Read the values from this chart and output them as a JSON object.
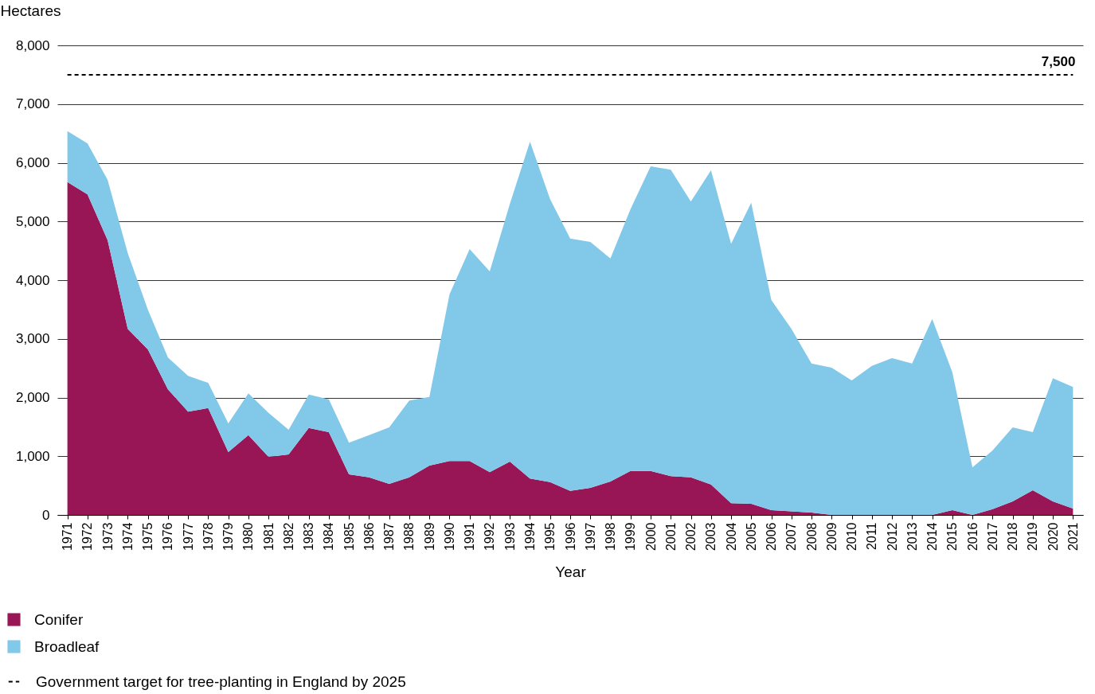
{
  "chart_data": {
    "type": "area",
    "stacked": true,
    "xlabel": "Year",
    "ylabel": "Hectares",
    "categories": [
      "1971",
      "1972",
      "1973",
      "1974",
      "1975",
      "1976",
      "1977",
      "1978",
      "1979",
      "1980",
      "1981",
      "1982",
      "1983",
      "1984",
      "1985",
      "1986",
      "1987",
      "1988",
      "1989",
      "1990",
      "1991",
      "1992",
      "1993",
      "1994",
      "1995",
      "1996",
      "1997",
      "1998",
      "1999",
      "2000",
      "2001",
      "2002",
      "2003",
      "2004",
      "2005",
      "2006",
      "2007",
      "2008",
      "2009",
      "2010",
      "2011",
      "2012",
      "2013",
      "2014",
      "2015",
      "2016",
      "2017",
      "2018",
      "2019",
      "2020",
      "2021"
    ],
    "series": [
      {
        "name": "Conifer",
        "color": "#981655",
        "values": [
          5670,
          5460,
          4680,
          3170,
          2820,
          2140,
          1760,
          1820,
          1070,
          1360,
          990,
          1030,
          1480,
          1410,
          690,
          640,
          530,
          640,
          840,
          920,
          920,
          730,
          910,
          620,
          560,
          410,
          460,
          570,
          750,
          750,
          660,
          640,
          520,
          200,
          190,
          80,
          60,
          40,
          0,
          0,
          0,
          0,
          0,
          0,
          80,
          0,
          100,
          230,
          420,
          230,
          110
        ]
      },
      {
        "name": "Broadleaf",
        "color": "#82c8e8",
        "values": [
          870,
          870,
          1030,
          1290,
          680,
          540,
          610,
          430,
          490,
          710,
          750,
          420,
          570,
          560,
          540,
          720,
          960,
          1310,
          1170,
          2840,
          3610,
          3420,
          4390,
          5740,
          4820,
          4300,
          4190,
          3800,
          4460,
          5190,
          5220,
          4700,
          5350,
          4420,
          5130,
          3580,
          3110,
          2540,
          2510,
          2290,
          2540,
          2670,
          2580,
          3340,
          2350,
          810,
          1000,
          1260,
          990,
          2100,
          2070
        ]
      }
    ],
    "ylim": [
      0,
      8000
    ],
    "yticks": [
      0,
      {
        "value": 1000,
        "label": "1,000"
      },
      {
        "value": 2000,
        "label": "2,000"
      },
      {
        "value": 3000,
        "label": "3,000"
      },
      {
        "value": 4000,
        "label": "4,000"
      },
      {
        "value": 5000,
        "label": "5,000"
      },
      {
        "value": 6000,
        "label": "6,000"
      },
      {
        "value": 7000,
        "label": "7,000"
      },
      {
        "value": 8000,
        "label": "8,000"
      }
    ],
    "grid": "y",
    "legend": "bottom left",
    "ref_lines": [
      {
        "axis": "y",
        "value": 7500,
        "label": "Government target for tree-planting in England by 2025",
        "color": "#000000",
        "line_style": "dashed"
      }
    ],
    "annotations": [
      {
        "text": "7,500",
        "x": "2021",
        "y": 7500
      }
    ]
  }
}
